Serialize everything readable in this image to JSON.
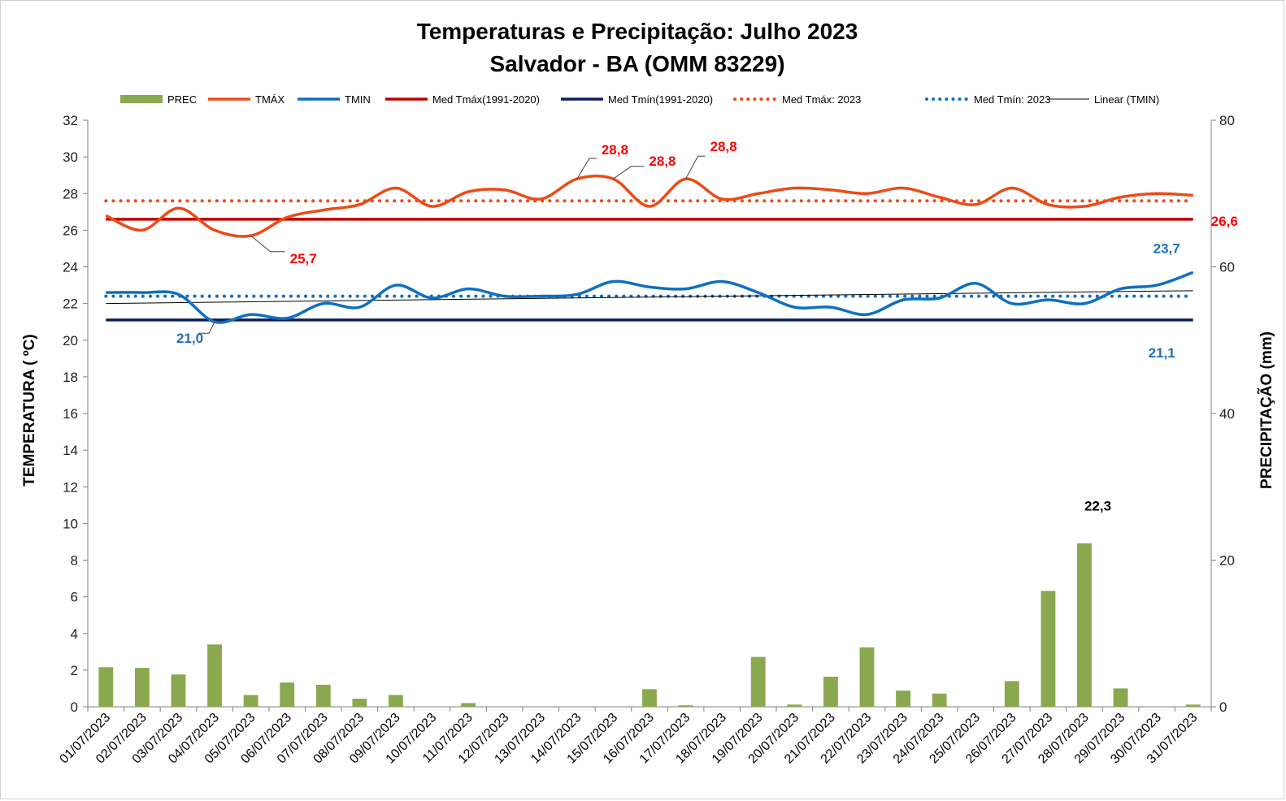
{
  "chart_data": {
    "type": "bar",
    "title": "Temperaturas e Precipitação: Julho 2023",
    "subtitle": "Salvador - BA (OMM 83229)",
    "ylabel": "TEMPERATURA  ( ºC)",
    "y2label": "PRECIPITAÇÃO  (mm)",
    "ylim": [
      0,
      32
    ],
    "ytick_step": 2,
    "y2lim": [
      0,
      80
    ],
    "y2tick_step": 20,
    "legend_position": "top",
    "categories": [
      "01/07/2023",
      "02/07/2023",
      "03/07/2023",
      "04/07/2023",
      "05/07/2023",
      "06/07/2023",
      "07/07/2023",
      "08/07/2023",
      "09/07/2023",
      "10/07/2023",
      "11/07/2023",
      "12/07/2023",
      "13/07/2023",
      "14/07/2023",
      "15/07/2023",
      "16/07/2023",
      "17/07/2023",
      "18/07/2023",
      "19/07/2023",
      "20/07/2023",
      "21/07/2023",
      "22/07/2023",
      "23/07/2023",
      "24/07/2023",
      "25/07/2023",
      "26/07/2023",
      "27/07/2023",
      "28/07/2023",
      "29/07/2023",
      "30/07/2023",
      "31/07/2023"
    ],
    "series": [
      {
        "name": "PREC",
        "kind": "bar",
        "axis": "y2",
        "color": "#8aa84e",
        "values": [
          5.4,
          5.3,
          4.4,
          8.5,
          1.6,
          3.3,
          3.0,
          1.1,
          1.6,
          0,
          0.5,
          0,
          0,
          0,
          0,
          2.4,
          0.2,
          0,
          6.8,
          0.3,
          4.1,
          8.1,
          2.2,
          1.8,
          0,
          3.5,
          15.8,
          22.3,
          2.5,
          0,
          0.3
        ]
      },
      {
        "name": "TMÁX",
        "kind": "line",
        "axis": "y",
        "color": "#ee4a17",
        "values": [
          26.8,
          26.0,
          27.2,
          26.0,
          25.7,
          26.7,
          27.1,
          27.4,
          28.3,
          27.3,
          28.1,
          28.2,
          27.7,
          28.8,
          28.8,
          27.3,
          28.8,
          27.7,
          28.0,
          28.3,
          28.2,
          28.0,
          28.3,
          27.8,
          27.4,
          28.3,
          27.4,
          27.3,
          27.8,
          28.0,
          27.9
        ]
      },
      {
        "name": "TMIN",
        "kind": "line",
        "axis": "y",
        "color": "#0f6fc0",
        "values": [
          22.6,
          22.6,
          22.5,
          21.0,
          21.4,
          21.2,
          22.0,
          21.8,
          23.0,
          22.3,
          22.8,
          22.4,
          22.4,
          22.5,
          23.2,
          22.9,
          22.8,
          23.2,
          22.6,
          21.8,
          21.8,
          21.4,
          22.2,
          22.3,
          23.1,
          22.0,
          22.2,
          22.0,
          22.8,
          23.0,
          23.7
        ]
      },
      {
        "name": "Med Tmáx(1991-2020)",
        "kind": "hline",
        "axis": "y",
        "color": "#c00000",
        "value": 26.6
      },
      {
        "name": "Med Tmín(1991-2020)",
        "kind": "hline",
        "axis": "y",
        "color": "#0a1f5c",
        "value": 21.1
      },
      {
        "name": "Med Tmáx: 2023",
        "kind": "dotted-hline",
        "axis": "y",
        "color": "#ee4a17",
        "value": 27.6
      },
      {
        "name": "Med Tmín: 2023",
        "kind": "dotted-hline",
        "axis": "y",
        "color": "#0f6fc0",
        "value": 22.4
      },
      {
        "name": "Linear (TMIN)",
        "kind": "trend",
        "axis": "y",
        "color": "#000000",
        "from": 22.0,
        "to": 22.7
      }
    ],
    "annotations": [
      {
        "text": "28,8",
        "series": "TMÁX",
        "index": 13,
        "color": "#ff0000"
      },
      {
        "text": "28,8",
        "series": "TMÁX",
        "index": 14,
        "color": "#ff0000"
      },
      {
        "text": "28,8",
        "series": "TMÁX",
        "index": 16,
        "color": "#ff0000"
      },
      {
        "text": "25,7",
        "series": "TMÁX",
        "index": 4,
        "color": "#ff0000"
      },
      {
        "text": "26,6",
        "series": "Med Tmáx(1991-2020)",
        "index": 30,
        "color": "#ff0000"
      },
      {
        "text": "23,7",
        "series": "TMIN",
        "index": 30,
        "color": "#1f6fb4"
      },
      {
        "text": "21,0",
        "series": "TMIN",
        "index": 3,
        "color": "#1f6fb4"
      },
      {
        "text": "21,1",
        "series": "Med Tmín(1991-2020)",
        "index": 30,
        "color": "#1f6fb4"
      },
      {
        "text": "22,3",
        "series": "PREC",
        "index": 27,
        "color": "#000000"
      }
    ]
  }
}
